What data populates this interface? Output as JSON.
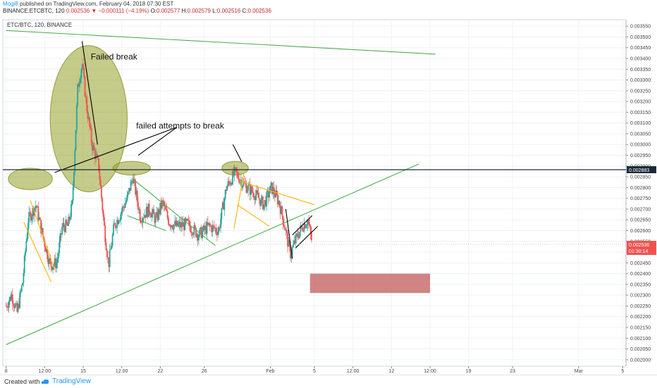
{
  "header": {
    "author": "Mogi8",
    "published": "published on TradingView.com, February 04, 2018 07:30 EST",
    "symbol_line": "BINANCE:ETCBTC, 120",
    "last_price": "0.002536",
    "change": "−0.000111 (−4.19%)",
    "ohlc": {
      "o_label": "O:",
      "o": "0.002577",
      "h_label": "H:",
      "h": "0.002579",
      "l_label": "L:",
      "l": "0.002516",
      "c_label": "C:",
      "c": "0.002536"
    }
  },
  "footer": {
    "created_label": "Created with",
    "brand": "TradingView"
  },
  "chart_data": {
    "type": "candlestick",
    "title": "ETC/BTC, 120, BINANCE",
    "ylim": [
      0.00197,
      0.00358
    ],
    "y_ticks": [
      "0.003550",
      "0.003500",
      "0.003450",
      "0.003400",
      "0.003350",
      "0.003300",
      "0.003250",
      "0.003200",
      "0.003150",
      "0.003100",
      "0.003050",
      "0.003000",
      "0.002950",
      "0.002900",
      "0.002850",
      "0.002800",
      "0.002750",
      "0.002700",
      "0.002650",
      "0.002600",
      "0.002550",
      "0.002500",
      "0.002450",
      "0.002400",
      "0.002350",
      "0.002300",
      "0.002250",
      "0.002200",
      "0.002150",
      "0.002100",
      "0.002050",
      "0.002000"
    ],
    "x_ticks": [
      {
        "label": "8",
        "t": 0
      },
      {
        "label": "12:00",
        "t": 3.5
      },
      {
        "label": "15",
        "t": 7
      },
      {
        "label": "12:00",
        "t": 10.5
      },
      {
        "label": "22",
        "t": 14
      },
      {
        "label": "26",
        "t": 18
      },
      {
        "label": "Feb",
        "t": 24
      },
      {
        "label": "5",
        "t": 28
      },
      {
        "label": "12:00",
        "t": 31.5
      },
      {
        "label": "12",
        "t": 35
      },
      {
        "label": "12:00",
        "t": 38.5
      },
      {
        "label": "19",
        "t": 42
      },
      {
        "label": "23",
        "t": 46
      },
      {
        "label": "Mar",
        "t": 52
      },
      {
        "label": "5",
        "t": 56
      }
    ],
    "x_domain": [
      -0.3,
      56.3
    ],
    "price_anchors": [
      [
        0.0,
        0.00225
      ],
      [
        0.5,
        0.0023
      ],
      [
        1.0,
        0.00222
      ],
      [
        1.5,
        0.00236
      ],
      [
        2.0,
        0.00265
      ],
      [
        2.7,
        0.00272
      ],
      [
        3.3,
        0.00258
      ],
      [
        4.0,
        0.00244
      ],
      [
        4.6,
        0.00245
      ],
      [
        5.1,
        0.00262
      ],
      [
        5.6,
        0.00262
      ],
      [
        6.0,
        0.00272
      ],
      [
        6.5,
        0.00326
      ],
      [
        6.9,
        0.00338
      ],
      [
        7.3,
        0.00318
      ],
      [
        7.8,
        0.003
      ],
      [
        8.4,
        0.0029
      ],
      [
        8.9,
        0.00262
      ],
      [
        9.3,
        0.00244
      ],
      [
        9.8,
        0.00262
      ],
      [
        10.3,
        0.00267
      ],
      [
        11.0,
        0.00275
      ],
      [
        11.5,
        0.00285
      ],
      [
        12.2,
        0.00266
      ],
      [
        13.0,
        0.0027
      ],
      [
        13.6,
        0.00265
      ],
      [
        14.2,
        0.00273
      ],
      [
        14.8,
        0.00264
      ],
      [
        15.5,
        0.00262
      ],
      [
        16.5,
        0.00263
      ],
      [
        17.5,
        0.00258
      ],
      [
        18.4,
        0.00262
      ],
      [
        19.3,
        0.0026
      ],
      [
        20.0,
        0.0028
      ],
      [
        20.8,
        0.00287
      ],
      [
        21.7,
        0.00281
      ],
      [
        22.6,
        0.00277
      ],
      [
        23.4,
        0.00272
      ],
      [
        24.1,
        0.0028
      ],
      [
        24.8,
        0.00273
      ],
      [
        25.3,
        0.00262
      ],
      [
        25.8,
        0.00249
      ],
      [
        26.4,
        0.00257
      ],
      [
        26.9,
        0.00262
      ],
      [
        27.4,
        0.00265
      ],
      [
        27.8,
        0.00254
      ]
    ],
    "last_price_value": 0.002536,
    "timer": "01:30:14",
    "ref_level_value": 0.002883,
    "ref_level_label": "0.002883",
    "annotations": [
      {
        "kind": "text",
        "text": "Failed break",
        "t": 9.8,
        "price": 0.003395
      },
      {
        "kind": "text",
        "text": "failed attempts to break",
        "t": 15.8,
        "price": 0.003075
      },
      {
        "kind": "ellipse",
        "t": 7.5,
        "price": 0.00312,
        "rx_t": 3.5,
        "ry_price": 0.00034
      },
      {
        "kind": "ellipse",
        "t": 2.2,
        "price": 0.00284,
        "rx_t": 2.0,
        "ry_price": 5e-05
      },
      {
        "kind": "ellipse",
        "t": 11.4,
        "price": 0.00289,
        "rx_t": 1.7,
        "ry_price": 3.2e-05
      },
      {
        "kind": "ellipse",
        "t": 20.8,
        "price": 0.00289,
        "rx_t": 1.2,
        "ry_price": 3.2e-05
      },
      {
        "kind": "rect",
        "t1": 27.6,
        "t2": 38.5,
        "price1": 0.0024,
        "price2": 0.00231
      },
      {
        "kind": "line",
        "color": "#4caf50",
        "pts": [
          [
            0,
            0.00353
          ],
          [
            39,
            0.00342
          ]
        ]
      },
      {
        "kind": "line",
        "color": "#4caf50",
        "pts": [
          [
            0,
            0.00207
          ],
          [
            37.5,
            0.00291
          ]
        ]
      },
      {
        "kind": "line",
        "color": "#000000",
        "pts": [
          [
            6.9,
            0.00348
          ],
          [
            8.3,
            0.003
          ]
        ]
      },
      {
        "kind": "line",
        "color": "#000000",
        "pts": [
          [
            4.4,
            0.00287
          ],
          [
            15.5,
            0.00308
          ]
        ]
      },
      {
        "kind": "line",
        "color": "#000000",
        "pts": [
          [
            12.0,
            0.00295
          ],
          [
            15.5,
            0.00308
          ]
        ]
      },
      {
        "kind": "line",
        "color": "#000000",
        "pts": [
          [
            20.6,
            0.003
          ],
          [
            21.4,
            0.00292
          ]
        ]
      },
      {
        "kind": "line",
        "color": "#ffb300",
        "pts": [
          [
            2.2,
            0.00274
          ],
          [
            4.4,
            0.00242
          ]
        ]
      },
      {
        "kind": "line",
        "color": "#ffb300",
        "pts": [
          [
            1.6,
            0.00264
          ],
          [
            4.1,
            0.00236
          ]
        ]
      },
      {
        "kind": "line",
        "color": "#4caf50",
        "pts": [
          [
            11.5,
            0.00284
          ],
          [
            19.0,
            0.00253
          ]
        ]
      },
      {
        "kind": "line",
        "color": "#4caf50",
        "pts": [
          [
            11.0,
            0.00267
          ],
          [
            14.5,
            0.0026
          ]
        ]
      },
      {
        "kind": "line",
        "color": "#ffb300",
        "pts": [
          [
            21.2,
            0.00283
          ],
          [
            28.0,
            0.00272
          ]
        ]
      },
      {
        "kind": "line",
        "color": "#ffb300",
        "pts": [
          [
            21.0,
            0.00272
          ],
          [
            23.9,
            0.00262
          ]
        ]
      },
      {
        "kind": "line",
        "color": "#ffb300",
        "pts": [
          [
            20.7,
            0.00261
          ],
          [
            21.6,
            0.00287
          ]
        ]
      },
      {
        "kind": "line",
        "color": "#000000",
        "pts": [
          [
            25.4,
            0.0027
          ],
          [
            26.0,
            0.00247
          ]
        ]
      },
      {
        "kind": "line",
        "color": "#000000",
        "pts": [
          [
            26.0,
            0.00258
          ],
          [
            27.8,
            0.00267
          ]
        ]
      },
      {
        "kind": "line",
        "color": "#000000",
        "pts": [
          [
            26.3,
            0.00252
          ],
          [
            28.3,
            0.00262
          ]
        ]
      }
    ]
  }
}
